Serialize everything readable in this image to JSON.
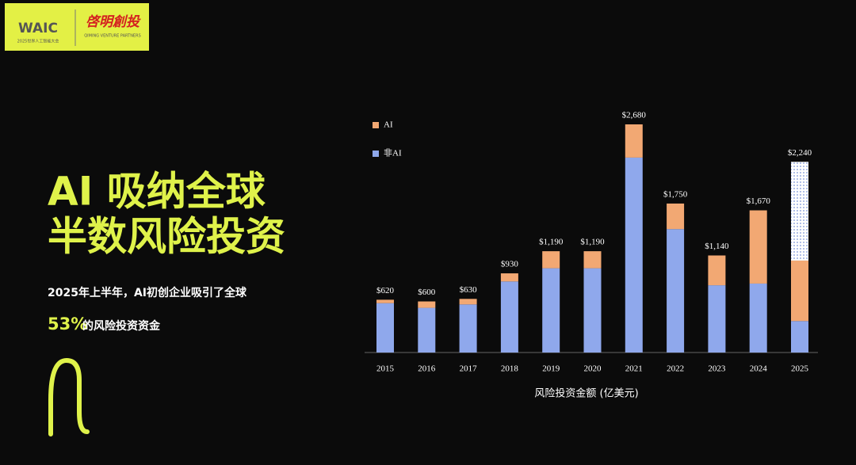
{
  "logo": {
    "event": "WAIC",
    "event_sub": "2025世界人工智能大会",
    "brand": "啓明創投",
    "brand_sub": "QIMING VENTURE PARTNERS"
  },
  "headline": {
    "line1": "AI 吸纳全球",
    "line2": "半数风险投资"
  },
  "subtitle": {
    "line1": "2025年上半年，AI初创企业吸引了全球",
    "highlight": "53%",
    "line2": "的风险投资资金"
  },
  "chart_data": {
    "type": "stacked_bar",
    "categories": [
      "2015",
      "2016",
      "2017",
      "2018",
      "2019",
      "2020",
      "2021",
      "2022",
      "2023",
      "2024",
      "2025"
    ],
    "series": [
      {
        "name": "非AI",
        "color": "#8fa8ec",
        "values": [
          580,
          525,
          565,
          835,
          990,
          990,
          2290,
          1450,
          790,
          810,
          370
        ]
      },
      {
        "name": "AI",
        "color": "#f2a873",
        "values": [
          40,
          75,
          65,
          95,
          200,
          200,
          390,
          300,
          350,
          860,
          710
        ]
      },
      {
        "color": "#8fa8ec",
        "pattern": "dots",
        "values": [
          null,
          null,
          null,
          null,
          null,
          null,
          null,
          null,
          null,
          null,
          1160
        ]
      }
    ],
    "totals": {
      "values": [
        620,
        600,
        630,
        930,
        1190,
        1190,
        2680,
        1750,
        1140,
        1670,
        2240
      ],
      "value_labels": [
        "$620",
        "$600",
        "$630",
        "$930",
        "$1,190",
        "$1,190",
        "$2,680",
        "$1,750",
        "$1,140",
        "$1,670",
        "$2,240"
      ]
    },
    "x_label": "风险投资金额 (亿美元)"
  }
}
